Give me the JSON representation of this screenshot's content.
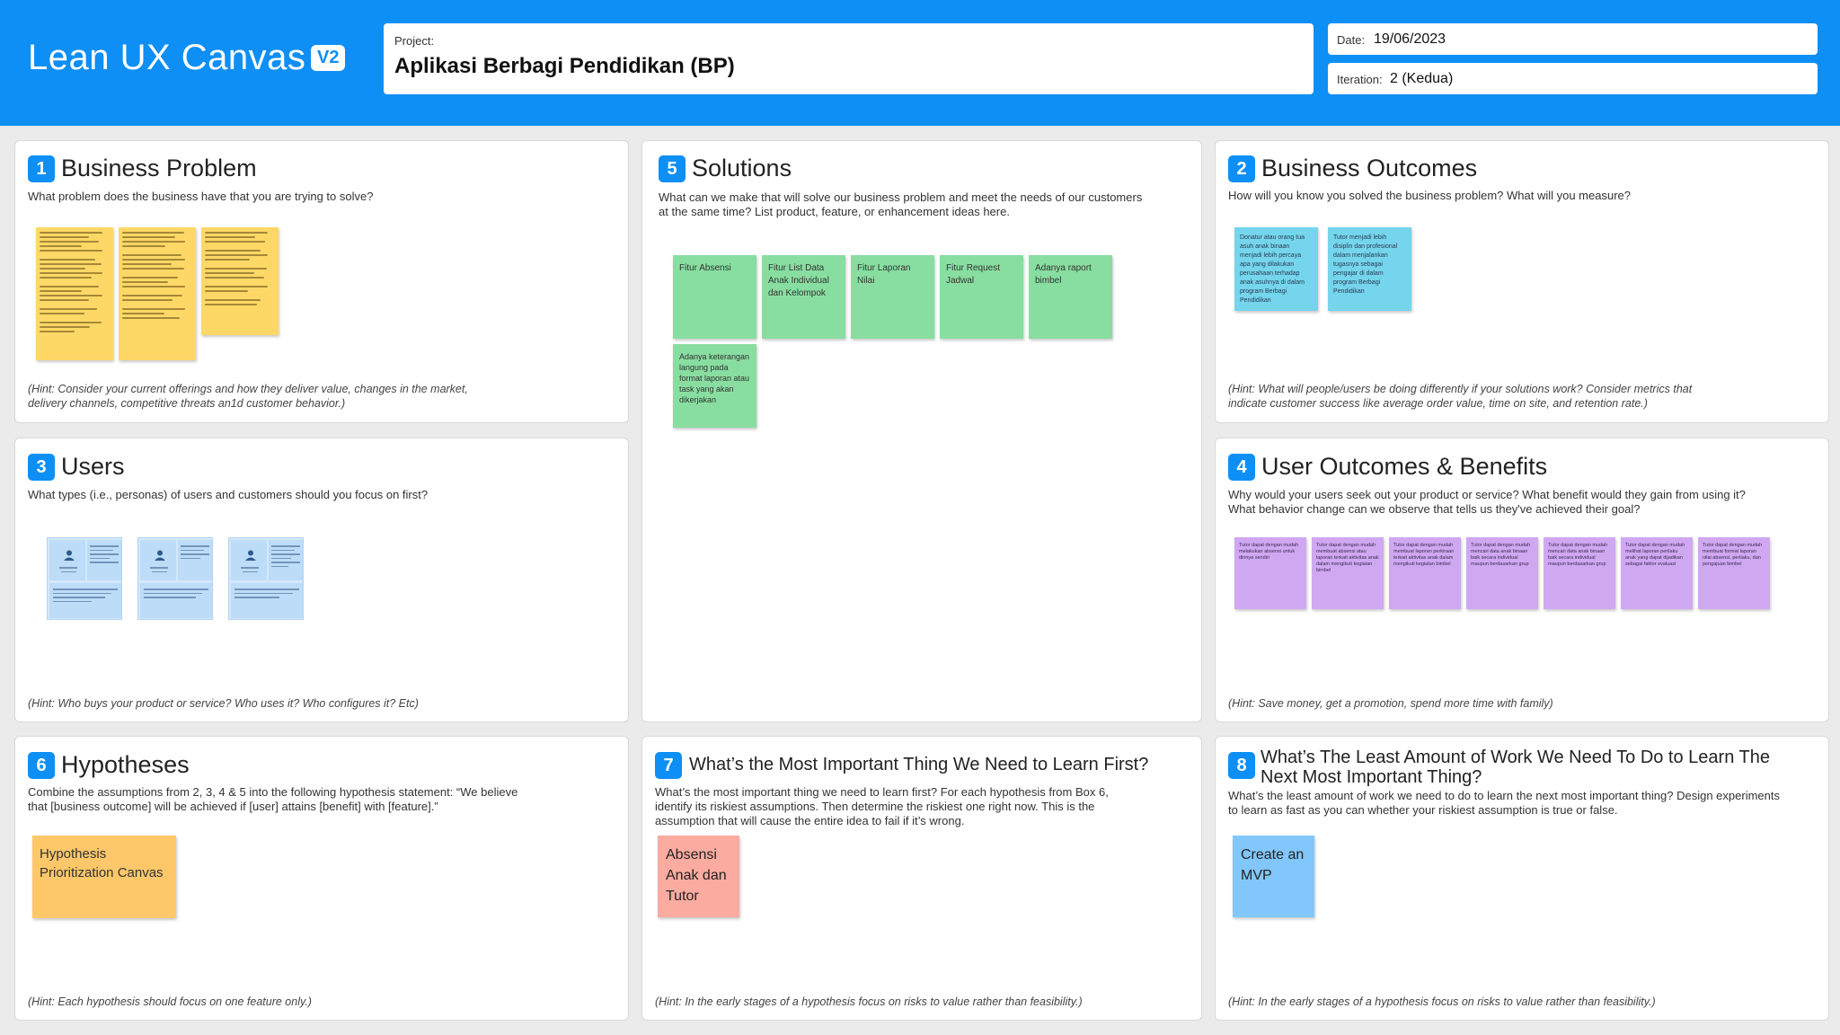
{
  "header": {
    "title": "Lean UX Canvas",
    "version": "V2",
    "project_label": "Project:",
    "project_value": "Aplikasi Berbagi Pendidikan (BP)",
    "date_label": "Date:",
    "date_value": "19/06/2023",
    "iteration_label": "Iteration:",
    "iteration_value": "2 (Kedua)"
  },
  "panels": {
    "business_problem": {
      "number": "1",
      "title": "Business Problem",
      "description": "What problem does the business have that you are trying to solve?",
      "hint": "(Hint: Consider your current offerings and how they deliver value, changes in the market, delivery channels, competitive threats an1d customer behavior.)"
    },
    "solutions": {
      "number": "5",
      "title": "Solutions",
      "description": "What can we make that will solve our business problem and meet the needs of our customers at the same time? List product, feature, or enhancement ideas here.",
      "stickies": [
        "Fitur Absensi",
        "Fitur List Data Anak Individual dan Kelompok",
        "Fitur Laporan Nilai",
        "Fitur Request Jadwal",
        "Adanya raport bimbel",
        "Adanya keterangan langung pada format laporan atau task yang akan dikerjakan"
      ]
    },
    "business_outcomes": {
      "number": "2",
      "title": "Business Outcomes",
      "description": "How will you know you solved the business problem? What will you measure?",
      "stickies": [
        "Donatur atau orang tua asuh anak binaan menjadi lebih percaya apa yang dilakukan perusahaan terhadap anak asuhnya di dalam program Berbagi Pendidikan",
        "Tutor menjadi lebih disiplin dan profesional dalam menjalankan tugasnya sebagai pengajar di dalam program Berbagi Pendidikan"
      ],
      "hint": "(Hint: What will people/users be doing differently if your solutions work? Consider metrics that indicate customer success like average order value, time on site, and retention rate.)"
    },
    "users": {
      "number": "3",
      "title": "Users",
      "description": "What types (i.e., personas) of users and customers should you focus on first?",
      "hint": "(Hint: Who buys your product or service? Who uses it? Who configures it? Etc)"
    },
    "user_outcomes": {
      "number": "4",
      "title": "User Outcomes & Benefits",
      "description": "Why would your users seek out your product or service? What benefit would they gain from using it? What behavior change can we observe that tells us they've achieved their goal?",
      "stickies": [
        "Tutor dapat dengan mudah melakukan absensi untuk dirinya sendiri",
        "Tutor dapat dengan mudah membuat absensi atau laporan terkait aktivitas anak dalam mengikuti kegiatan bimbel",
        "Tutor dapat dengan mudah membuat laporan perkiraan terkait aktivitas anak dalam mengikuti kegiatan bimbel",
        "Tutor dapat dengan mudah mencari data anak binaan baik secara individual maupun berdasarkan grup",
        "Tutor dapat dengan mudah mencari data anak binaan baik secara individual maupun berdasarkan grup",
        "Tutor dapat dengan mudah melihat laporan perilaku anak yang dapat dijadikan sebagai faktor evaluasi",
        "Tutor dapat dengan mudah membuat format laporan nilai absensi, perilaku, dan pengajuan bimbel"
      ],
      "hint": "(Hint: Save money, get a promotion, spend more time with family)"
    },
    "hypotheses": {
      "number": "6",
      "title": "Hypotheses",
      "description": "Combine the assumptions from 2, 3, 4 & 5 into the following hypothesis statement: “We believe that [business outcome] will be achieved if [user] attains [benefit] with [feature].”",
      "sticky": "Hypothesis Prioritization Canvas",
      "hint": "(Hint: Each hypothesis should focus on one feature only.)"
    },
    "learn_first": {
      "number": "7",
      "title": "What’s the Most Important Thing We Need to Learn First?",
      "description": "What’s the most important thing we need to learn first? For each hypothesis from Box 6, identify its riskiest assumptions. Then determine the riskiest one right now. This is the assumption that will cause the entire idea to fail if it’s wrong.",
      "sticky": "Absensi Anak dan Tutor",
      "hint": "(Hint: In the early stages of a hypothesis focus on risks to value rather than feasibility.)"
    },
    "least_work": {
      "number": "8",
      "title": "What’s The Least Amount of Work We Need To Do to Learn The Next Most Important Thing?",
      "description": "What’s the least amount of work we need to do to learn the next most important thing? Design experiments to learn as fast as you can whether your riskiest assumption is true or false.",
      "sticky": "Create an MVP",
      "hint": "(Hint: In the early stages of a hypothesis focus on risks to value rather than feasibility.)"
    }
  },
  "colors": {
    "header_blue": "#0e8ff5",
    "sticky_yellow": "#fdd866",
    "sticky_green": "#88dea0",
    "sticky_cyan": "#74d5ec",
    "sticky_purple": "#d0a8f2",
    "sticky_orange": "#fdc76a",
    "sticky_salmon": "#fbaba0",
    "sticky_blue": "#82c7fb"
  }
}
